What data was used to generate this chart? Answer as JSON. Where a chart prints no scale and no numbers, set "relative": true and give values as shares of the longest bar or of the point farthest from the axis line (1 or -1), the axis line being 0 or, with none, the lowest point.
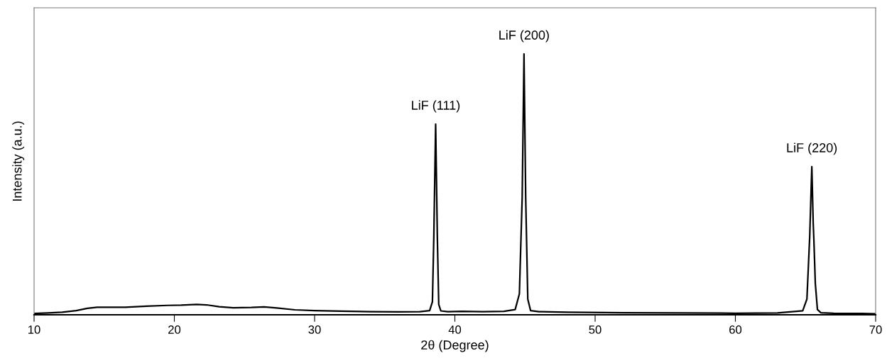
{
  "chart_data": {
    "type": "line",
    "relative": true,
    "xlabel": "2θ (Degree)",
    "ylabel": "Intensity (a.u.)",
    "xlim": [
      10,
      70
    ],
    "xticks": [
      10,
      20,
      30,
      40,
      50,
      60,
      70
    ],
    "tick_labels": "x",
    "grid": false,
    "legend": false,
    "marker": "none",
    "line_style": "solid",
    "annotations": [
      {
        "text": "LiF (111)",
        "x": 38.63,
        "y": 0.731
      },
      {
        "text": "LiF (200)",
        "x": 44.93,
        "y": 1
      },
      {
        "text": "LiF (220)",
        "x": 65.45,
        "y": 0.568
      }
    ],
    "series": [
      {
        "color": "#000000",
        "x": [
          10,
          11,
          12,
          13,
          13.8,
          14.5,
          15.5,
          16.5,
          18,
          19.5,
          20.5,
          21.6,
          22.3,
          23.2,
          24.2,
          25.5,
          26.4,
          27.3,
          28.6,
          30,
          31.9,
          34,
          36,
          37.5,
          38.2,
          38.4,
          38.5,
          38.63,
          38.75,
          38.85,
          39.0,
          39.5,
          40.5,
          42,
          43.5,
          44.3,
          44.6,
          44.8,
          44.93,
          45.05,
          45.2,
          45.4,
          46,
          48,
          52,
          56,
          60,
          63,
          64.8,
          65.1,
          65.3,
          65.45,
          65.55,
          65.6,
          65.7,
          65.85,
          66.1,
          67,
          69,
          70
        ],
        "values": [
          0.005,
          0.007,
          0.01,
          0.016,
          0.025,
          0.029,
          0.029,
          0.029,
          0.033,
          0.036,
          0.037,
          0.04,
          0.038,
          0.031,
          0.027,
          0.028,
          0.03,
          0.026,
          0.019,
          0.016,
          0.014,
          0.012,
          0.011,
          0.012,
          0.016,
          0.05,
          0.3,
          0.731,
          0.3,
          0.04,
          0.015,
          0.012,
          0.013,
          0.012,
          0.013,
          0.02,
          0.08,
          0.45,
          1,
          0.45,
          0.06,
          0.016,
          0.012,
          0.01,
          0.008,
          0.007,
          0.006,
          0.007,
          0.015,
          0.06,
          0.3,
          0.568,
          0.35,
          0.283,
          0.12,
          0.02,
          0.008,
          0.006,
          0.005,
          0.004
        ]
      }
    ]
  }
}
